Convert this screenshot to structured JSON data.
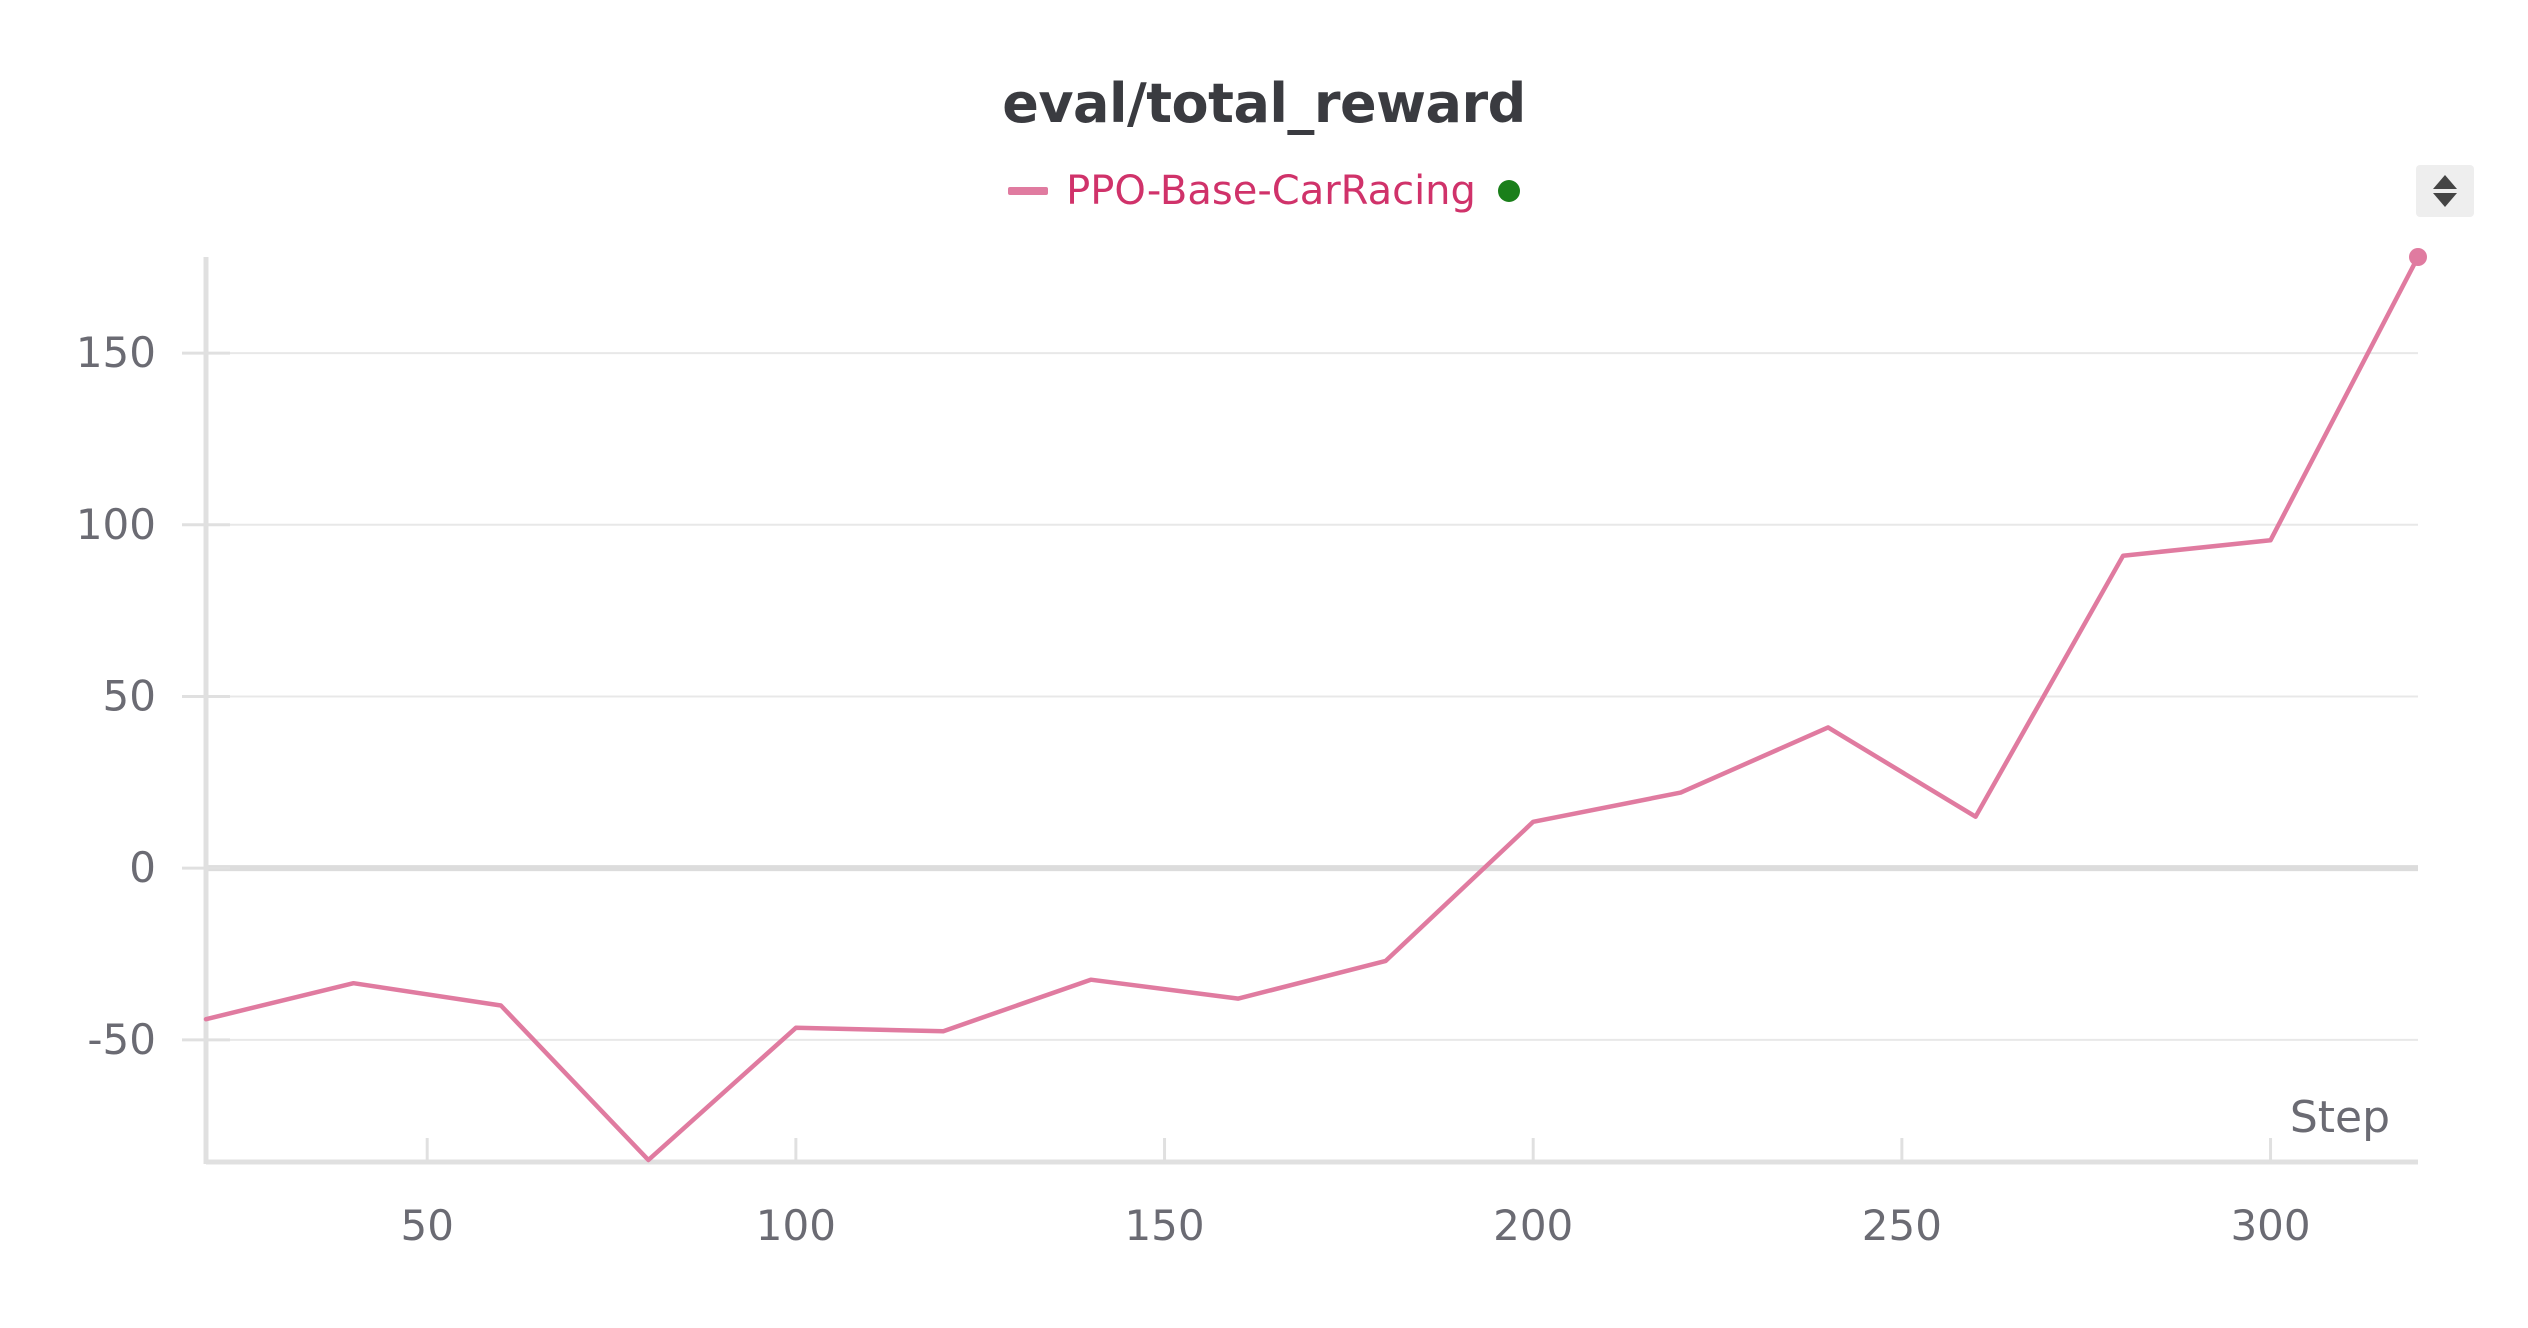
{
  "chart_data": {
    "type": "line",
    "title": "eval/total_reward",
    "xlabel": "Step",
    "ylabel": "",
    "xlim": [
      20,
      320
    ],
    "ylim": [
      -85,
      178
    ],
    "x_ticks": [
      50,
      100,
      150,
      200,
      250,
      300
    ],
    "y_ticks": [
      -50,
      0,
      50,
      100,
      150
    ],
    "grid": true,
    "legend_position": "top-center",
    "series": [
      {
        "name": "PPO-Base-CarRacing",
        "color": "#e07ba0",
        "x": [
          20,
          40,
          60,
          80,
          100,
          120,
          140,
          160,
          180,
          200,
          220,
          240,
          260,
          280,
          300,
          320
        ],
        "y": [
          -44,
          -33.5,
          -40,
          -85,
          -46.5,
          -47.5,
          -32.5,
          -38,
          -27,
          13.5,
          22,
          41,
          15,
          91,
          95.5,
          178
        ]
      }
    ]
  },
  "legend": {
    "label_color": "#d0326a",
    "status_dot_color": "#1a7f1a"
  },
  "controls": {
    "scroll_icon": "up-down-arrows-icon"
  }
}
